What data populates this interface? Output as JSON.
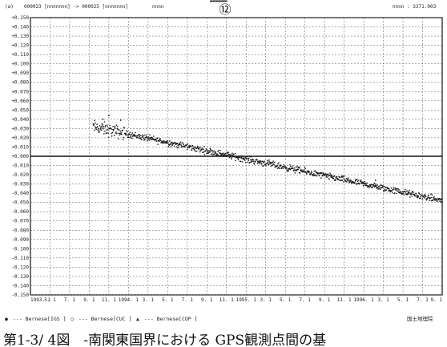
{
  "header": {
    "panel_label": "(a)",
    "baseline_text": "000023 [nnnnnnn] -> 000025 [nnnnnnn]",
    "component_text": "nnnn",
    "circled_number": "⑫",
    "top_cutoff_text": "▬▬▬▬▬▬",
    "right_text": "nnnn : 3371.003"
  },
  "legend": [
    {
      "marker": "●",
      "label": "--- Bernese[IGS   ]"
    },
    {
      "marker": "○",
      "label": "--- Bernese[CUC   ]"
    },
    {
      "marker": "▲",
      "label": "--- Bernese[COP   ]"
    }
  ],
  "footer_right": "国土地理院",
  "caption": "第1-3/ 4図　-南関東国界における GPS観測点間の基",
  "chart_data": {
    "type": "scatter",
    "title": "",
    "xlabel": "",
    "ylabel": "",
    "ylim": [
      -0.15,
      0.15
    ],
    "ymajor_step": 0.01,
    "xlim": [
      0,
      21
    ],
    "grid": true,
    "zero_line": true,
    "x_tick_labels": [
      "1993. 1",
      "5. 1",
      "7. 1",
      "9. 1",
      "11. 1",
      "1994. 1",
      "3. 1",
      "5. 1",
      "7. 1",
      "9. 1",
      "11. 1",
      "1995. 1",
      "3. 1",
      "5. 1",
      "7. 1",
      "9. 1",
      "11. 1",
      "1996. 1",
      "3. 1",
      "5. 1",
      "7. 1",
      "9. 1"
    ],
    "series": [
      {
        "marker": "dot",
        "trend": {
          "x_start": 3.2,
          "y_start": 0.032,
          "x_end": 21.0,
          "y_end": -0.048
        },
        "spread": 0.0035,
        "outliers": [
          [
            4.0,
            0.044
          ],
          [
            4.6,
            0.039
          ],
          [
            17.6,
            -0.026
          ],
          [
            3.7,
            0.04
          ]
        ]
      }
    ]
  }
}
